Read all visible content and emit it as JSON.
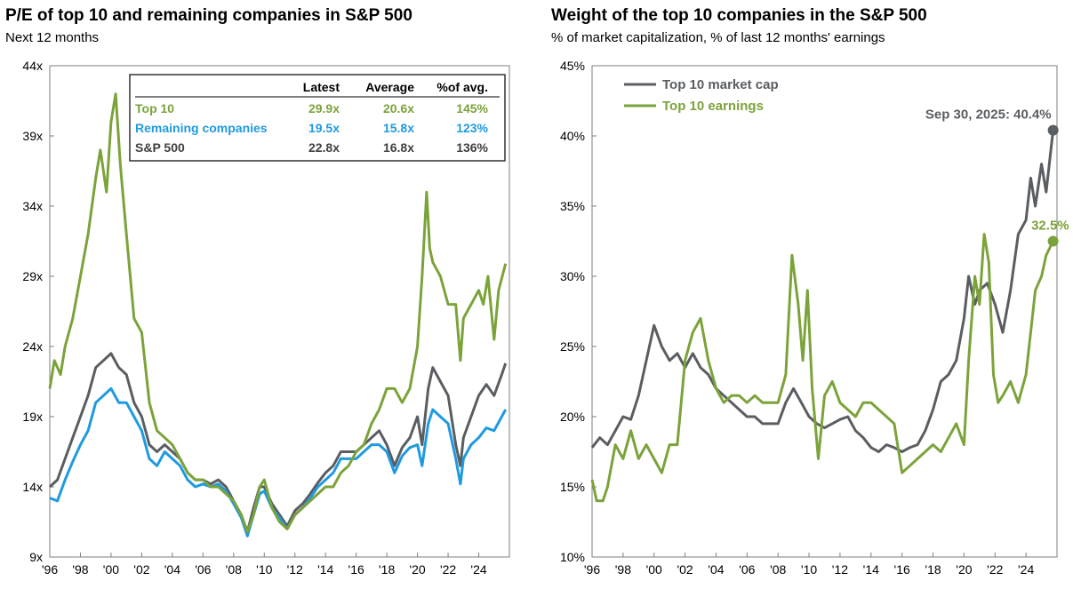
{
  "chart_data": [
    {
      "type": "line",
      "title": "P/E of top 10 and remaining companies in S&P 500",
      "subtitle": "Next 12 months",
      "xlim": [
        1996,
        2026
      ],
      "ylim": [
        9,
        44
      ],
      "x_ticks": [
        1996,
        1998,
        2000,
        2002,
        2004,
        2006,
        2008,
        2010,
        2012,
        2014,
        2016,
        2018,
        2020,
        2022,
        2024
      ],
      "x_tick_labels": [
        "'96",
        "'98",
        "'00",
        "'02",
        "'04",
        "'06",
        "'08",
        "'10",
        "'12",
        "'14",
        "'16",
        "'18",
        "'20",
        "'22",
        "'24"
      ],
      "y_ticks": [
        9,
        14,
        19,
        24,
        29,
        34,
        39,
        44
      ],
      "y_tick_labels": [
        "9x",
        "14x",
        "19x",
        "24x",
        "29x",
        "34x",
        "39x",
        "44x"
      ],
      "table": {
        "headers": [
          "",
          "Latest",
          "Average",
          "%of avg."
        ],
        "rows": [
          {
            "label": "Top 10",
            "latest": "29.9x",
            "average": "20.6x",
            "pct": "145%",
            "color": "#7ba33a"
          },
          {
            "label": "Remaining companies",
            "latest": "19.5x",
            "average": "15.8x",
            "pct": "123%",
            "color": "#1f9ae0"
          },
          {
            "label": "S&P 500",
            "latest": "22.8x",
            "average": "16.8x",
            "pct": "136%",
            "color": "#404040"
          }
        ]
      },
      "series": [
        {
          "name": "S&P 500",
          "color": "#5a5d61",
          "x": [
            1996,
            1996.5,
            1997,
            1997.5,
            1998,
            1998.5,
            1999,
            1999.5,
            2000,
            2000.5,
            2001,
            2001.5,
            2002,
            2002.5,
            2003,
            2003.5,
            2004,
            2004.5,
            2005,
            2005.5,
            2006,
            2006.5,
            2007,
            2007.5,
            2008,
            2008.5,
            2008.9,
            2009.3,
            2009.7,
            2010,
            2010.5,
            2011,
            2011.5,
            2012,
            2012.5,
            2013,
            2013.5,
            2014,
            2014.5,
            2015,
            2015.5,
            2016,
            2016.5,
            2017,
            2017.5,
            2018,
            2018.5,
            2019,
            2019.5,
            2020,
            2020.3,
            2020.7,
            2021,
            2021.5,
            2022,
            2022.5,
            2022.8,
            2023,
            2023.5,
            2024,
            2024.5,
            2025,
            2025.5,
            2025.75
          ],
          "y": [
            14,
            14.5,
            16,
            17.5,
            19,
            20.5,
            22.5,
            23,
            23.5,
            22.5,
            22,
            20,
            19,
            17,
            16.5,
            17,
            16.5,
            16,
            15,
            14.5,
            14.5,
            14.2,
            14.5,
            14,
            13,
            12,
            10.8,
            12.5,
            14,
            14,
            12.8,
            12,
            11.2,
            12.3,
            12.8,
            13.5,
            14.3,
            15,
            15.5,
            16.5,
            16.5,
            16.5,
            17,
            17.5,
            18,
            17,
            15.5,
            16.8,
            17.5,
            19,
            17,
            21,
            22.5,
            21.5,
            20.5,
            17,
            15.5,
            17.5,
            19,
            20.5,
            21.3,
            20.5,
            22,
            22.8
          ]
        },
        {
          "name": "Remaining companies",
          "color": "#1f9ae0",
          "x": [
            1996,
            1996.5,
            1997,
            1997.5,
            1998,
            1998.5,
            1999,
            1999.5,
            2000,
            2000.5,
            2001,
            2001.5,
            2002,
            2002.5,
            2003,
            2003.5,
            2004,
            2004.5,
            2005,
            2005.5,
            2006,
            2006.5,
            2007,
            2007.5,
            2008,
            2008.5,
            2008.9,
            2009.3,
            2009.7,
            2010,
            2010.5,
            2011,
            2011.5,
            2012,
            2012.5,
            2013,
            2013.5,
            2014,
            2014.5,
            2015,
            2015.5,
            2016,
            2016.5,
            2017,
            2017.5,
            2018,
            2018.5,
            2019,
            2019.5,
            2020,
            2020.3,
            2020.7,
            2021,
            2021.5,
            2022,
            2022.5,
            2022.8,
            2023,
            2023.5,
            2024,
            2024.5,
            2025,
            2025.5,
            2025.75
          ],
          "y": [
            13.2,
            13,
            14.5,
            15.8,
            17,
            18,
            20,
            20.5,
            21,
            20,
            20,
            19,
            18,
            16,
            15.5,
            16.5,
            16,
            15.5,
            14.5,
            14,
            14.2,
            14,
            14.2,
            13.7,
            12.8,
            11.8,
            10.5,
            12,
            13.5,
            13.7,
            12.5,
            11.8,
            11,
            12,
            12.5,
            13.2,
            14,
            14.5,
            15,
            16,
            16,
            16,
            16.5,
            17,
            17,
            16.5,
            15,
            16.2,
            16.8,
            17,
            15.5,
            18.5,
            19.5,
            19,
            18.5,
            16,
            14.2,
            16,
            17,
            17.5,
            18.2,
            18,
            19,
            19.5
          ]
        },
        {
          "name": "Top 10",
          "color": "#7ba33a",
          "x": [
            1996,
            1996.3,
            1996.7,
            1997,
            1997.5,
            1998,
            1998.5,
            1999,
            1999.3,
            1999.7,
            2000,
            2000.3,
            2000.6,
            2001,
            2001.5,
            2002,
            2002.5,
            2003,
            2003.5,
            2004,
            2004.5,
            2005,
            2005.5,
            2006,
            2006.5,
            2007,
            2007.5,
            2008,
            2008.5,
            2008.9,
            2009.3,
            2009.7,
            2010,
            2010.5,
            2011,
            2011.5,
            2012,
            2012.5,
            2013,
            2013.5,
            2014,
            2014.5,
            2015,
            2015.5,
            2016,
            2016.5,
            2017,
            2017.5,
            2018,
            2018.5,
            2019,
            2019.5,
            2020,
            2020.3,
            2020.6,
            2020.8,
            2021,
            2021.5,
            2022,
            2022.5,
            2022.8,
            2023,
            2023.5,
            2024,
            2024.3,
            2024.6,
            2025,
            2025.3,
            2025.75
          ],
          "y": [
            21,
            23,
            22,
            24,
            26,
            29,
            32,
            36,
            38,
            35,
            40,
            42,
            37,
            32,
            26,
            25,
            20,
            18,
            17.5,
            17,
            16,
            15,
            14.5,
            14.5,
            14,
            14,
            13.5,
            13,
            12,
            10.8,
            12,
            14,
            14.5,
            12.5,
            11.5,
            11,
            12,
            12.5,
            13,
            13.5,
            14,
            14,
            15,
            15.5,
            16.5,
            17,
            18.5,
            19.5,
            21,
            21,
            20,
            21,
            24,
            29,
            35,
            31,
            30,
            29,
            27,
            27,
            23,
            26,
            27,
            28,
            27,
            29,
            24.5,
            28,
            29.9
          ]
        }
      ]
    },
    {
      "type": "line",
      "title": "Weight of the top 10 companies in the S&P 500",
      "subtitle": "% of market capitalization, % of last 12 months' earnings",
      "xlim": [
        1996,
        2026
      ],
      "ylim": [
        10,
        45
      ],
      "x_ticks": [
        1996,
        1998,
        2000,
        2002,
        2004,
        2006,
        2008,
        2010,
        2012,
        2014,
        2016,
        2018,
        2020,
        2022,
        2024
      ],
      "x_tick_labels": [
        "'96",
        "'98",
        "'00",
        "'02",
        "'04",
        "'06",
        "'08",
        "'10",
        "'12",
        "'14",
        "'16",
        "'18",
        "'20",
        "'22",
        "'24"
      ],
      "y_ticks": [
        10,
        15,
        20,
        25,
        30,
        35,
        40,
        45
      ],
      "y_tick_labels": [
        "10%",
        "15%",
        "20%",
        "25%",
        "30%",
        "35%",
        "40%",
        "45%"
      ],
      "legend": [
        "Top 10 market cap",
        "Top 10 earnings"
      ],
      "annotations": {
        "market_cap_end": "Sep 30, 2025: 40.4%",
        "earnings_end": "32.5%"
      },
      "series": [
        {
          "name": "Top 10 market cap",
          "color": "#5a5d61",
          "x": [
            1996,
            1996.5,
            1997,
            1997.5,
            1998,
            1998.5,
            1999,
            1999.5,
            2000,
            2000.5,
            2001,
            2001.5,
            2002,
            2002.5,
            2003,
            2003.5,
            2004,
            2004.5,
            2005,
            2005.5,
            2006,
            2006.5,
            2007,
            2007.5,
            2008,
            2008.5,
            2009,
            2009.5,
            2010,
            2010.5,
            2011,
            2011.5,
            2012,
            2012.5,
            2013,
            2013.5,
            2014,
            2014.5,
            2015,
            2015.5,
            2016,
            2016.5,
            2017,
            2017.5,
            2018,
            2018.5,
            2019,
            2019.5,
            2020,
            2020.3,
            2020.7,
            2021,
            2021.5,
            2022,
            2022.5,
            2023,
            2023.5,
            2024,
            2024.3,
            2024.6,
            2025,
            2025.3,
            2025.75
          ],
          "y": [
            17.8,
            18.5,
            18,
            19,
            20,
            19.8,
            21.5,
            24,
            26.5,
            25,
            24,
            24.5,
            23.5,
            24.5,
            23.5,
            23,
            22,
            21.5,
            21,
            20.5,
            20,
            20,
            19.5,
            19.5,
            19.5,
            21,
            22,
            21,
            20,
            19.5,
            19.2,
            19.5,
            19.8,
            20,
            19,
            18.5,
            17.8,
            17.5,
            18,
            17.8,
            17.5,
            17.8,
            18,
            19,
            20.5,
            22.5,
            23,
            24,
            27,
            30,
            28,
            29,
            29.5,
            28,
            26,
            29,
            33,
            34,
            37,
            35,
            38,
            36,
            40.4
          ]
        },
        {
          "name": "Top 10 earnings",
          "color": "#7ba33a",
          "x": [
            1996,
            1996.3,
            1996.7,
            1997,
            1997.5,
            1998,
            1998.5,
            1999,
            1999.5,
            2000,
            2000.5,
            2001,
            2001.5,
            2002,
            2002.5,
            2003,
            2003.5,
            2004,
            2004.5,
            2005,
            2005.5,
            2006,
            2006.5,
            2007,
            2007.5,
            2008,
            2008.5,
            2008.9,
            2009.3,
            2009.6,
            2009.9,
            2010.2,
            2010.6,
            2011,
            2011.5,
            2012,
            2012.5,
            2013,
            2013.5,
            2014,
            2014.5,
            2015,
            2015.5,
            2016,
            2016.5,
            2017,
            2017.5,
            2018,
            2018.5,
            2019,
            2019.5,
            2020,
            2020.3,
            2020.7,
            2021,
            2021.3,
            2021.6,
            2021.9,
            2022.2,
            2022.5,
            2023,
            2023.5,
            2024,
            2024.3,
            2024.6,
            2025,
            2025.3,
            2025.75
          ],
          "y": [
            15.5,
            14,
            14,
            15,
            18,
            17,
            19,
            17,
            18,
            17,
            16,
            18,
            18,
            24,
            26,
            27,
            24,
            22,
            21,
            21.5,
            21.5,
            21,
            21.5,
            21,
            21,
            21,
            23,
            31.5,
            28,
            24,
            29,
            22,
            17,
            21.5,
            22.5,
            21,
            20.5,
            20,
            21,
            21,
            20.5,
            20,
            19.5,
            16,
            16.5,
            17,
            17.5,
            18,
            17.5,
            18.5,
            19.5,
            18,
            24,
            30,
            28,
            33,
            31,
            23,
            21,
            21.5,
            22.5,
            21,
            23,
            26,
            29,
            30,
            31.5,
            32.5
          ]
        }
      ]
    }
  ]
}
